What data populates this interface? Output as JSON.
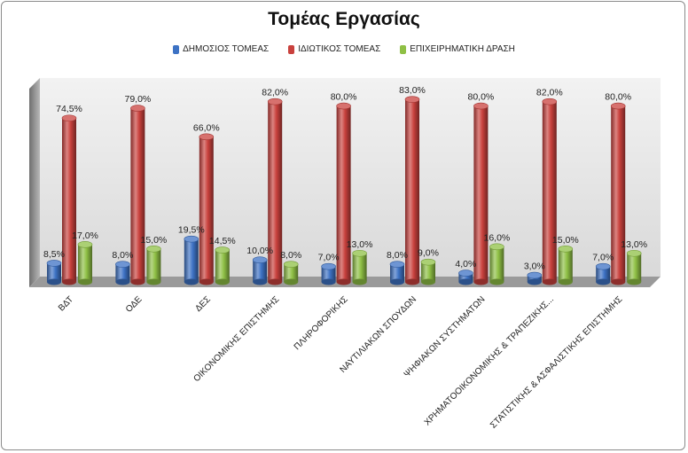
{
  "chart_data": {
    "type": "bar",
    "title": "Τομέας Εργασίας",
    "categories": [
      "ΒΔΤ",
      "ΟΔΕ",
      "ΔΕΣ",
      "ΟΙΚΟΝΟΜΙΚΗΣ ΕΠΙΣΤΗΜΗΣ",
      "ΠΛΗΡΟΦΟΡΙΚΗΣ",
      "ΝΑΥΤΙΛΙΑΚΩΝ ΣΠΟΥΔΩΝ",
      "ΨΗΦΙΑΚΩΝ ΣΥΣΤΗΜΑΤΩΝ",
      "ΧΡΗΜΑΤΟΟΙΚΟΝΟΜΙΚΗΣ & ΤΡΑΠΕΖΙΚΗΣ...",
      "ΣΤΑΤΙΣΤΙΚΗΣ & ΑΣΦΑΛΙΣΤΙΚΗΣ ΕΠΙΣΤΗΜΗΣ"
    ],
    "series": [
      {
        "name": "ΔΗΜΟΣΙΟΣ ΤΟΜΕΑΣ",
        "color": "#3d72c4",
        "values": [
          8.5,
          8.0,
          19.5,
          10.0,
          7.0,
          8.0,
          4.0,
          3.0,
          7.0
        ],
        "labels": [
          "8,5%",
          "8,0%",
          "19,5%",
          "10,0%",
          "7,0%",
          "8,0%",
          "4,0%",
          "3,0%",
          "7,0%"
        ]
      },
      {
        "name": "ΙΔΙΩΤΙΚΟΣ ΤΟΜΕΑΣ",
        "color": "#c9413d",
        "values": [
          74.5,
          79.0,
          66.0,
          82.0,
          80.0,
          83.0,
          80.0,
          82.0,
          80.0
        ],
        "labels": [
          "74,5%",
          "79,0%",
          "66,0%",
          "82,0%",
          "80,0%",
          "83,0%",
          "80,0%",
          "82,0%",
          "80,0%"
        ]
      },
      {
        "name": "ΕΠΙΧΕΙΡΗΜΑΤΙΚΗ ΔΡΑΣΗ",
        "color": "#8fc045",
        "values": [
          17.0,
          15.0,
          14.5,
          8.0,
          13.0,
          9.0,
          16.0,
          15.0,
          13.0
        ],
        "labels": [
          "17,0%",
          "15,0%",
          "14,5%",
          "8,0%",
          "13,0%",
          "9,0%",
          "16,0%",
          "15,0%",
          "13,0%"
        ]
      }
    ],
    "ylim": [
      0,
      100
    ],
    "grid": false,
    "legend_position": "top",
    "three_d": true,
    "bar_shape": "cylinder"
  }
}
